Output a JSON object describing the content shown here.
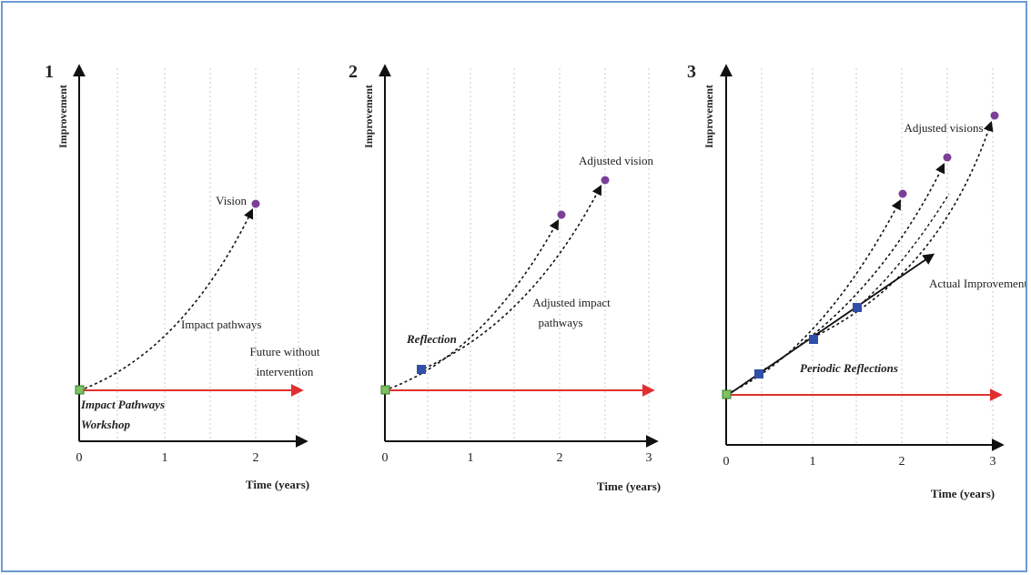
{
  "colors": {
    "frame_border": "#6b9bd1",
    "red_line": "#e03030",
    "vision_dot": "#7b3f98",
    "reflection_square": "#2f4fa8",
    "start_square": "#7dc163",
    "grid": "#c8c8c8"
  },
  "panel1": {
    "number": "1",
    "ylabel": "Improvement",
    "xlabel": "Time (years)",
    "ticks": [
      "0",
      "1",
      "2"
    ],
    "vision": "Vision",
    "impact": "Impact pathways",
    "future_line1": "Future without",
    "future_line2": "intervention",
    "workshop_line1": "Impact Pathways",
    "workshop_line2": "Workshop"
  },
  "panel2": {
    "number": "2",
    "ylabel": "Improvement",
    "xlabel": "Time (years)",
    "ticks": [
      "0",
      "1",
      "2",
      "3"
    ],
    "adjusted_vision": "Adjusted vision",
    "adjusted_line1": "Adjusted impact",
    "adjusted_line2": "pathways",
    "reflection": "Reflection"
  },
  "panel3": {
    "number": "3",
    "ylabel": "Improvement",
    "xlabel": "Time (years)",
    "ticks": [
      "0",
      "1",
      "2",
      "3"
    ],
    "adjusted_visions": "Adjusted visions",
    "actual": "Actual Improvements",
    "periodic": "Periodic Reflections"
  }
}
